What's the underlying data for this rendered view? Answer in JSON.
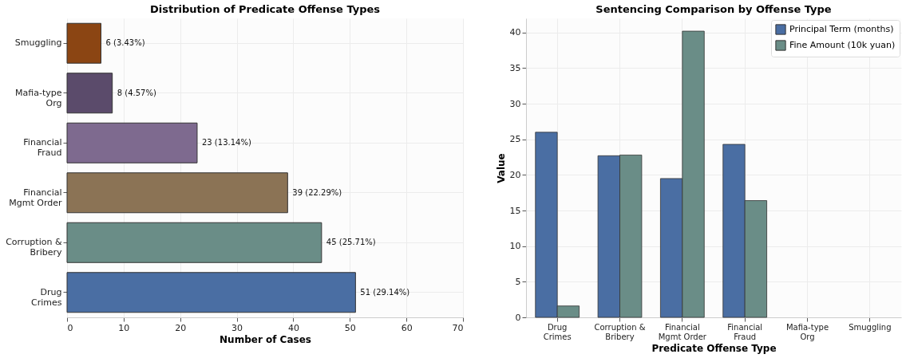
{
  "chart_data": [
    {
      "type": "bar",
      "orientation": "horizontal",
      "title": "Distribution of Predicate Offense Types",
      "xlabel": "Number of Cases",
      "categories": [
        "Smuggling",
        "Mafia-type\nOrg",
        "Financial\nFraud",
        "Financial\nMgmt Order",
        "Corruption &\nBribery",
        "Drug\nCrimes"
      ],
      "values": [
        6,
        8,
        23,
        39,
        45,
        51
      ],
      "colors": [
        "#8b4513",
        "#5b4b6b",
        "#7e6a8f",
        "#8b7355",
        "#6a8d87",
        "#4a6ea3"
      ],
      "value_labels": [
        "6 (3.43%)",
        "8 (4.57%)",
        "23 (13.14%)",
        "39 (22.29%)",
        "45 (25.71%)",
        "51 (29.14%)"
      ],
      "xlim": [
        0,
        70
      ],
      "xticks": [
        0,
        10,
        20,
        30,
        40,
        50,
        60,
        70
      ],
      "grid": true
    },
    {
      "type": "bar",
      "title": "Sentencing Comparison by Offense Type",
      "xlabel": "Predicate Offense Type",
      "ylabel": "Value",
      "categories": [
        "Drug\nCrimes",
        "Corruption &\nBribery",
        "Financial\nMgmt Order",
        "Financial\nFraud",
        "Mafia-type\nOrg",
        "Smuggling"
      ],
      "series": [
        {
          "name": "Principal Term (months)",
          "color": "#4a6ea3",
          "values": [
            26.0,
            22.7,
            19.5,
            24.3,
            null,
            null
          ]
        },
        {
          "name": "Fine Amount (10k yuan)",
          "color": "#6a8d87",
          "values": [
            1.6,
            22.8,
            40.2,
            16.4,
            null,
            null
          ]
        }
      ],
      "ylim": [
        0,
        42
      ],
      "yticks": [
        0,
        5,
        10,
        15,
        20,
        25,
        30,
        35,
        40
      ],
      "grid": true,
      "legend": "top right"
    }
  ]
}
